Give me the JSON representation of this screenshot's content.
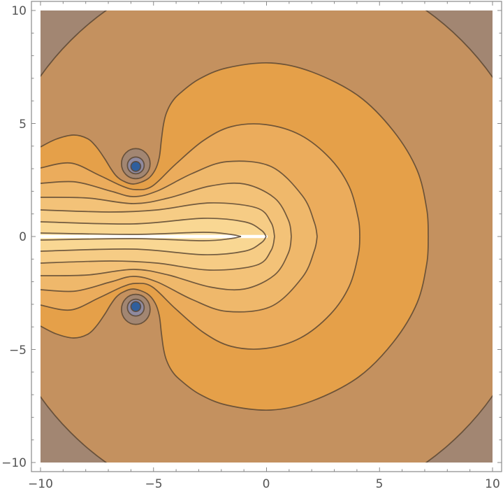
{
  "chart_data": {
    "type": "contour",
    "title": "",
    "xlabel": "",
    "ylabel": "",
    "xlim": [
      -10,
      10
    ],
    "ylim": [
      -10,
      10
    ],
    "x_ticks": [
      "−10",
      "−5",
      "0",
      "5",
      "10"
    ],
    "y_ticks": [
      "10",
      "5",
      "0",
      "−5",
      "−10"
    ],
    "minor_tick_step": 1,
    "grid": false,
    "legend": "none",
    "contour_count": 9,
    "minima": [
      [
        -5.8,
        3.1
      ],
      [
        -5.8,
        -3.1
      ]
    ],
    "branch_cut": {
      "from": [
        -10,
        0
      ],
      "to": [
        0,
        0
      ]
    },
    "symmetry": "mirror about y = 0",
    "band_colors": {
      "lowest": "#2f5f9d",
      "low_ring": "#8f8aa0",
      "corner": "#a28672",
      "outer": "#c4915f",
      "band_1": "#e5a049",
      "band_2": "#ebac5c",
      "band_3": "#efb86b",
      "band_4": "#f3c278",
      "band_5": "#f6cc85",
      "band_6": "#f9d793",
      "highest": "#fce2a6",
      "cut": "#ffffff",
      "contour_line": "#5a4732"
    }
  }
}
